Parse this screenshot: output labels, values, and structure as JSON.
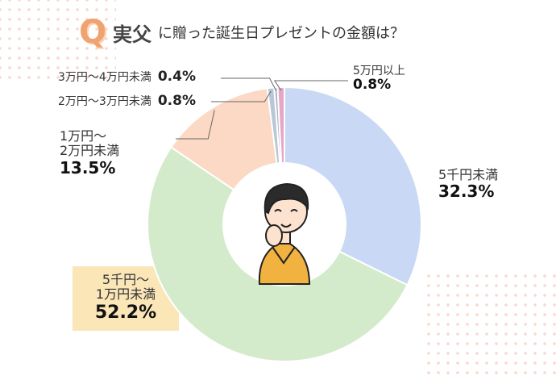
{
  "header": {
    "q_mark": "Q",
    "subject": "実父",
    "question": "に贈った誕生日プレゼントの金額は？"
  },
  "colors": {
    "accent": "#f0a36e",
    "highlight": "#fbe6b8",
    "slice_1": "#c9d9f5",
    "slice_2": "#d4ebcb",
    "slice_3": "#fbd9c4",
    "slice_4": "#b8c7d6",
    "slice_5": "#aeb6c4",
    "slice_6": "#e6a6c6"
  },
  "chart_data": {
    "type": "pie",
    "style": "donut",
    "title": "実父に贈った誕生日プレゼントの金額は？",
    "slices": [
      {
        "label": "5千円未満",
        "value": 32.3,
        "display": "32.3%"
      },
      {
        "label": "5千円～1万円未満",
        "value": 52.2,
        "display": "52.2%"
      },
      {
        "label": "1万円～2万円未満",
        "value": 13.5,
        "display": "13.5%"
      },
      {
        "label": "2万円～3万円未満",
        "value": 0.8,
        "display": "0.8%"
      },
      {
        "label": "3万円～4万円未満",
        "value": 0.4,
        "display": "0.4%"
      },
      {
        "label": "5万円以上",
        "value": 0.8,
        "display": "0.8%"
      }
    ]
  },
  "labels": {
    "l1_line1": "5千円未満",
    "l2_line1": "5千円～",
    "l2_line2": "1万円未満",
    "l3_line1": "1万円～",
    "l3_line2": "2万円未満"
  }
}
